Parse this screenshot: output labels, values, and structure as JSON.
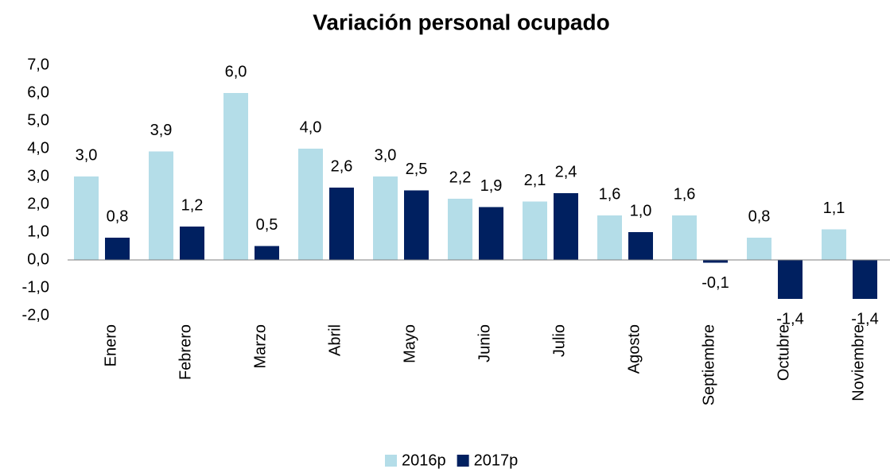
{
  "chart_data": {
    "type": "bar",
    "title": "Variación personal ocupado",
    "categories": [
      "Enero",
      "Febrero",
      "Marzo",
      "Abril",
      "Mayo",
      "Junio",
      "Julio",
      "Agosto",
      "Septiembre",
      "Octubre",
      "Noviembre"
    ],
    "series": [
      {
        "name": "2016p",
        "color": "#b4dde8",
        "values": [
          3.0,
          3.9,
          6.0,
          4.0,
          3.0,
          2.2,
          2.1,
          1.6,
          1.6,
          0.8,
          1.1
        ],
        "value_labels": [
          "3,0",
          "3,9",
          "6,0",
          "4,0",
          "3,0",
          "2,2",
          "2,1",
          "1,6",
          "1,6",
          "0,8",
          "1,1"
        ]
      },
      {
        "name": "2017p",
        "color": "#002060",
        "values": [
          0.8,
          1.2,
          0.5,
          2.6,
          2.5,
          1.9,
          2.4,
          1.0,
          -0.1,
          -1.4,
          -1.4
        ],
        "value_labels": [
          "0,8",
          "1,2",
          "0,5",
          "2,6",
          "2,5",
          "1,9",
          "2,4",
          "1,0",
          "-0,1",
          "-1,4",
          "-1,4"
        ]
      }
    ],
    "ylim": [
      -2,
      7
    ],
    "yticks": [
      {
        "value": -2,
        "label": "-2,0"
      },
      {
        "value": -1,
        "label": "-1,0"
      },
      {
        "value": 0,
        "label": "0,0"
      },
      {
        "value": 1,
        "label": "1,0"
      },
      {
        "value": 2,
        "label": "2,0"
      },
      {
        "value": 3,
        "label": "3,0"
      },
      {
        "value": 4,
        "label": "4,0"
      },
      {
        "value": 5,
        "label": "5,0"
      },
      {
        "value": 6,
        "label": "6,0"
      },
      {
        "value": 7,
        "label": "7,0"
      }
    ],
    "grid": false,
    "legend": "bottom"
  }
}
